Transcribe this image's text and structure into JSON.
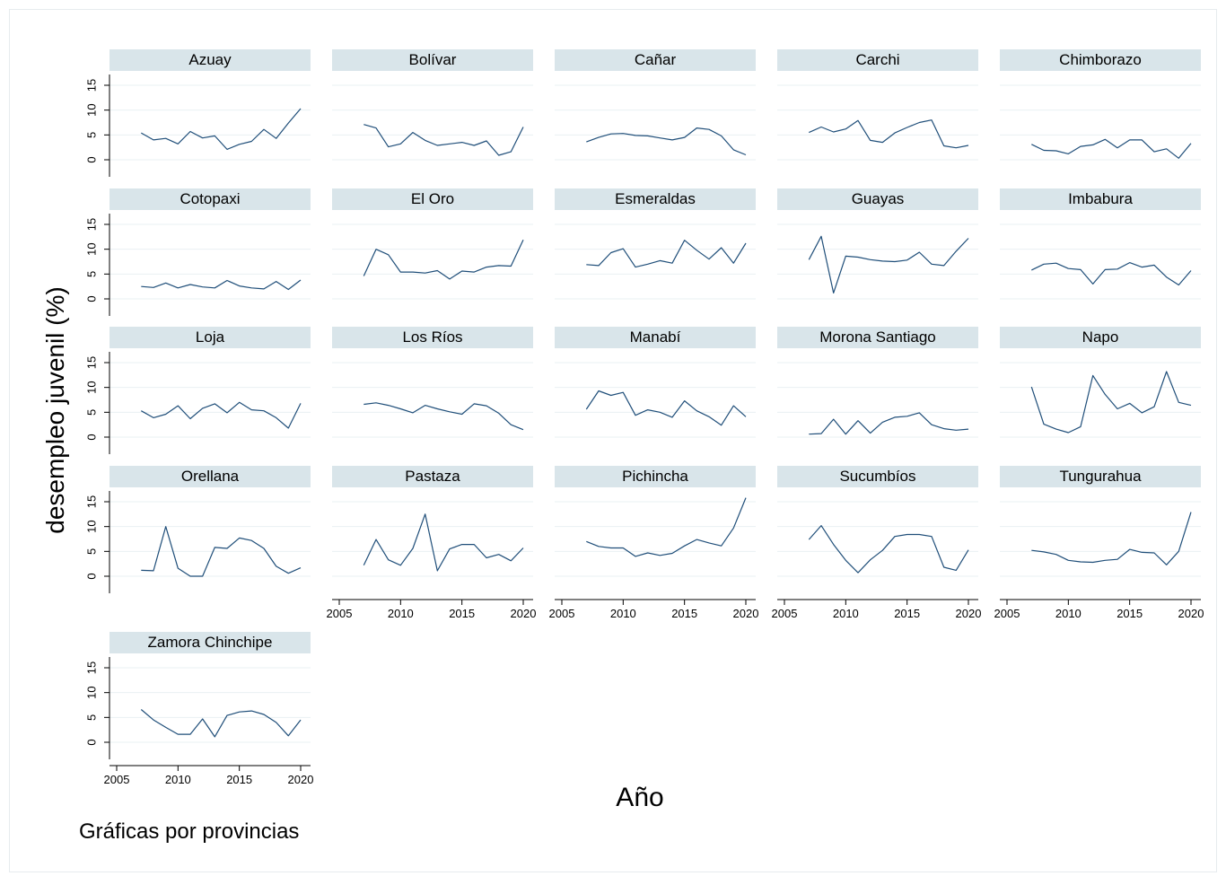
{
  "chart_data": {
    "type": "line",
    "facet_by": "provincia",
    "ylabel": "desempleo juvenil (%)",
    "xlabel": "Año",
    "note": "Gráficas por provincias",
    "xlim": [
      2005,
      2020
    ],
    "ylim": [
      0,
      15
    ],
    "x_ticks": [
      2005,
      2010,
      2015,
      2020
    ],
    "y_ticks": [
      0,
      5,
      10,
      15
    ],
    "x": [
      2007,
      2008,
      2009,
      2010,
      2011,
      2012,
      2013,
      2014,
      2015,
      2016,
      2017,
      2018,
      2019,
      2020
    ],
    "colors": {
      "line": "#1f4e79",
      "strip": "#d9e5ea",
      "grid": "#eaf0f3",
      "axis": "#000000"
    },
    "panels": [
      {
        "title": "Azuay",
        "values": [
          5.4,
          4.0,
          4.3,
          3.2,
          5.7,
          4.4,
          4.8,
          2.1,
          3.1,
          3.7,
          6.1,
          4.3,
          7.4,
          10.3
        ]
      },
      {
        "title": "Bolívar",
        "values": [
          7.1,
          6.4,
          2.6,
          3.2,
          5.5,
          3.9,
          2.9,
          3.2,
          3.5,
          2.9,
          3.8,
          0.9,
          1.6,
          6.6
        ]
      },
      {
        "title": "Cañar",
        "values": [
          3.6,
          4.5,
          5.2,
          5.3,
          4.9,
          4.8,
          4.4,
          4.0,
          4.5,
          6.4,
          6.1,
          4.8,
          2.0,
          1.0
        ]
      },
      {
        "title": "Carchi",
        "values": [
          5.5,
          6.6,
          5.6,
          6.2,
          7.9,
          3.9,
          3.5,
          5.4,
          6.5,
          7.5,
          8.0,
          2.8,
          2.4,
          2.9
        ]
      },
      {
        "title": "Chimborazo",
        "values": [
          3.1,
          1.9,
          1.8,
          1.2,
          2.7,
          3.0,
          4.1,
          2.4,
          4.0,
          4.0,
          1.6,
          2.2,
          0.3,
          3.3
        ]
      },
      {
        "title": "Cotopaxi",
        "values": [
          2.5,
          2.3,
          3.2,
          2.2,
          2.9,
          2.4,
          2.2,
          3.7,
          2.6,
          2.2,
          2.0,
          3.5,
          1.9,
          3.8
        ]
      },
      {
        "title": "El Oro",
        "values": [
          4.6,
          10.0,
          8.9,
          5.4,
          5.4,
          5.2,
          5.7,
          4.0,
          5.6,
          5.4,
          6.4,
          6.7,
          6.6,
          11.9
        ]
      },
      {
        "title": "Esmeraldas",
        "values": [
          6.9,
          6.7,
          9.3,
          10.1,
          6.4,
          7.0,
          7.7,
          7.2,
          11.8,
          9.8,
          8.0,
          10.3,
          7.2,
          11.2
        ]
      },
      {
        "title": "Guayas",
        "values": [
          7.9,
          12.6,
          1.2,
          8.6,
          8.4,
          7.9,
          7.6,
          7.5,
          7.8,
          9.4,
          7.0,
          6.7,
          9.6,
          12.2
        ]
      },
      {
        "title": "Imbabura",
        "values": [
          5.8,
          7.0,
          7.2,
          6.1,
          5.9,
          3.0,
          5.9,
          6.0,
          7.3,
          6.4,
          6.8,
          4.4,
          2.8,
          5.7
        ]
      },
      {
        "title": "Loja",
        "values": [
          5.3,
          3.9,
          4.6,
          6.3,
          3.7,
          5.8,
          6.7,
          4.9,
          7.0,
          5.5,
          5.3,
          3.9,
          1.8,
          6.8
        ]
      },
      {
        "title": "Los Ríos",
        "values": [
          6.6,
          6.9,
          6.4,
          5.7,
          4.9,
          6.4,
          5.7,
          5.1,
          4.6,
          6.7,
          6.3,
          4.8,
          2.5,
          1.5
        ]
      },
      {
        "title": "Manabí",
        "values": [
          5.6,
          9.3,
          8.4,
          9.0,
          4.4,
          5.5,
          5.0,
          4.0,
          7.3,
          5.3,
          4.1,
          2.4,
          6.3,
          4.1
        ]
      },
      {
        "title": "Morona Santiago",
        "values": [
          0.6,
          0.7,
          3.6,
          0.6,
          3.3,
          0.8,
          3.0,
          4.0,
          4.2,
          4.9,
          2.5,
          1.7,
          1.4,
          1.6
        ]
      },
      {
        "title": "Napo",
        "values": [
          10.1,
          2.6,
          1.6,
          0.9,
          2.1,
          12.4,
          8.6,
          5.7,
          6.8,
          4.9,
          6.1,
          13.2,
          7.0,
          6.4
        ]
      },
      {
        "title": "Orellana",
        "values": [
          1.2,
          1.1,
          10.0,
          1.6,
          0.0,
          0.0,
          5.8,
          5.6,
          7.7,
          7.2,
          5.6,
          2.0,
          0.6,
          1.7
        ]
      },
      {
        "title": "Pastaza",
        "values": [
          2.2,
          7.4,
          3.3,
          2.2,
          5.6,
          12.5,
          1.1,
          5.5,
          6.4,
          6.4,
          3.7,
          4.4,
          3.1,
          5.7
        ]
      },
      {
        "title": "Pichincha",
        "values": [
          7.0,
          6.0,
          5.7,
          5.7,
          4.0,
          4.7,
          4.2,
          4.6,
          6.1,
          7.4,
          6.7,
          6.1,
          9.7,
          15.8
        ]
      },
      {
        "title": "Sucumbíos",
        "values": [
          7.4,
          10.2,
          6.4,
          3.2,
          0.7,
          3.3,
          5.2,
          8.0,
          8.4,
          8.4,
          8.0,
          1.8,
          1.2,
          5.3
        ]
      },
      {
        "title": "Tungurahua",
        "values": [
          5.2,
          4.9,
          4.4,
          3.2,
          2.9,
          2.8,
          3.2,
          3.4,
          5.4,
          4.8,
          4.7,
          2.3,
          5.0,
          12.9
        ]
      },
      {
        "title": "Zamora Chinchipe",
        "values": [
          6.6,
          4.5,
          3.0,
          1.6,
          1.6,
          4.7,
          1.1,
          5.4,
          6.1,
          6.3,
          5.6,
          4.0,
          1.3,
          4.5
        ]
      }
    ]
  }
}
